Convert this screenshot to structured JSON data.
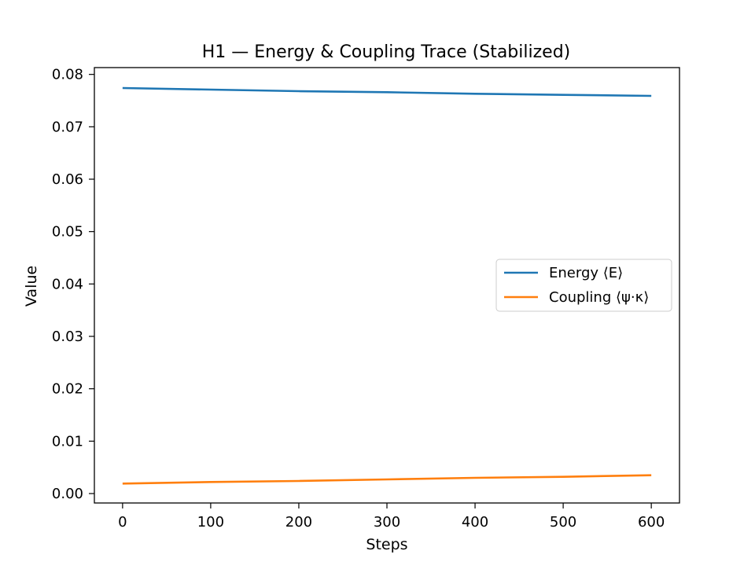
{
  "chart_data": {
    "type": "line",
    "title": "H1 — Energy & Coupling Trace (Stabilized)",
    "xlabel": "Steps",
    "ylabel": "Value",
    "xlim": [
      -32,
      632
    ],
    "ylim": [
      -0.0018,
      0.0813
    ],
    "xticks": [
      0,
      100,
      200,
      300,
      400,
      500,
      600
    ],
    "xtick_labels": [
      "0",
      "100",
      "200",
      "300",
      "400",
      "500",
      "600"
    ],
    "yticks": [
      0.0,
      0.01,
      0.02,
      0.03,
      0.04,
      0.05,
      0.06,
      0.07,
      0.08
    ],
    "ytick_labels": [
      "0.00",
      "0.01",
      "0.02",
      "0.03",
      "0.04",
      "0.05",
      "0.06",
      "0.07",
      "0.08"
    ],
    "grid": false,
    "legend_position": "center-right",
    "series": [
      {
        "name": "Energy ⟨E⟩",
        "color": "#1f77b4",
        "x": [
          0,
          100,
          200,
          300,
          400,
          500,
          600
        ],
        "y": [
          0.0774,
          0.0771,
          0.0768,
          0.0766,
          0.0763,
          0.0761,
          0.0759
        ]
      },
      {
        "name": "Coupling ⟨ψ·κ⟩",
        "color": "#ff7f0e",
        "x": [
          0,
          100,
          200,
          300,
          400,
          500,
          600
        ],
        "y": [
          0.0019,
          0.0022,
          0.0024,
          0.0027,
          0.003,
          0.0032,
          0.0035
        ]
      }
    ]
  }
}
